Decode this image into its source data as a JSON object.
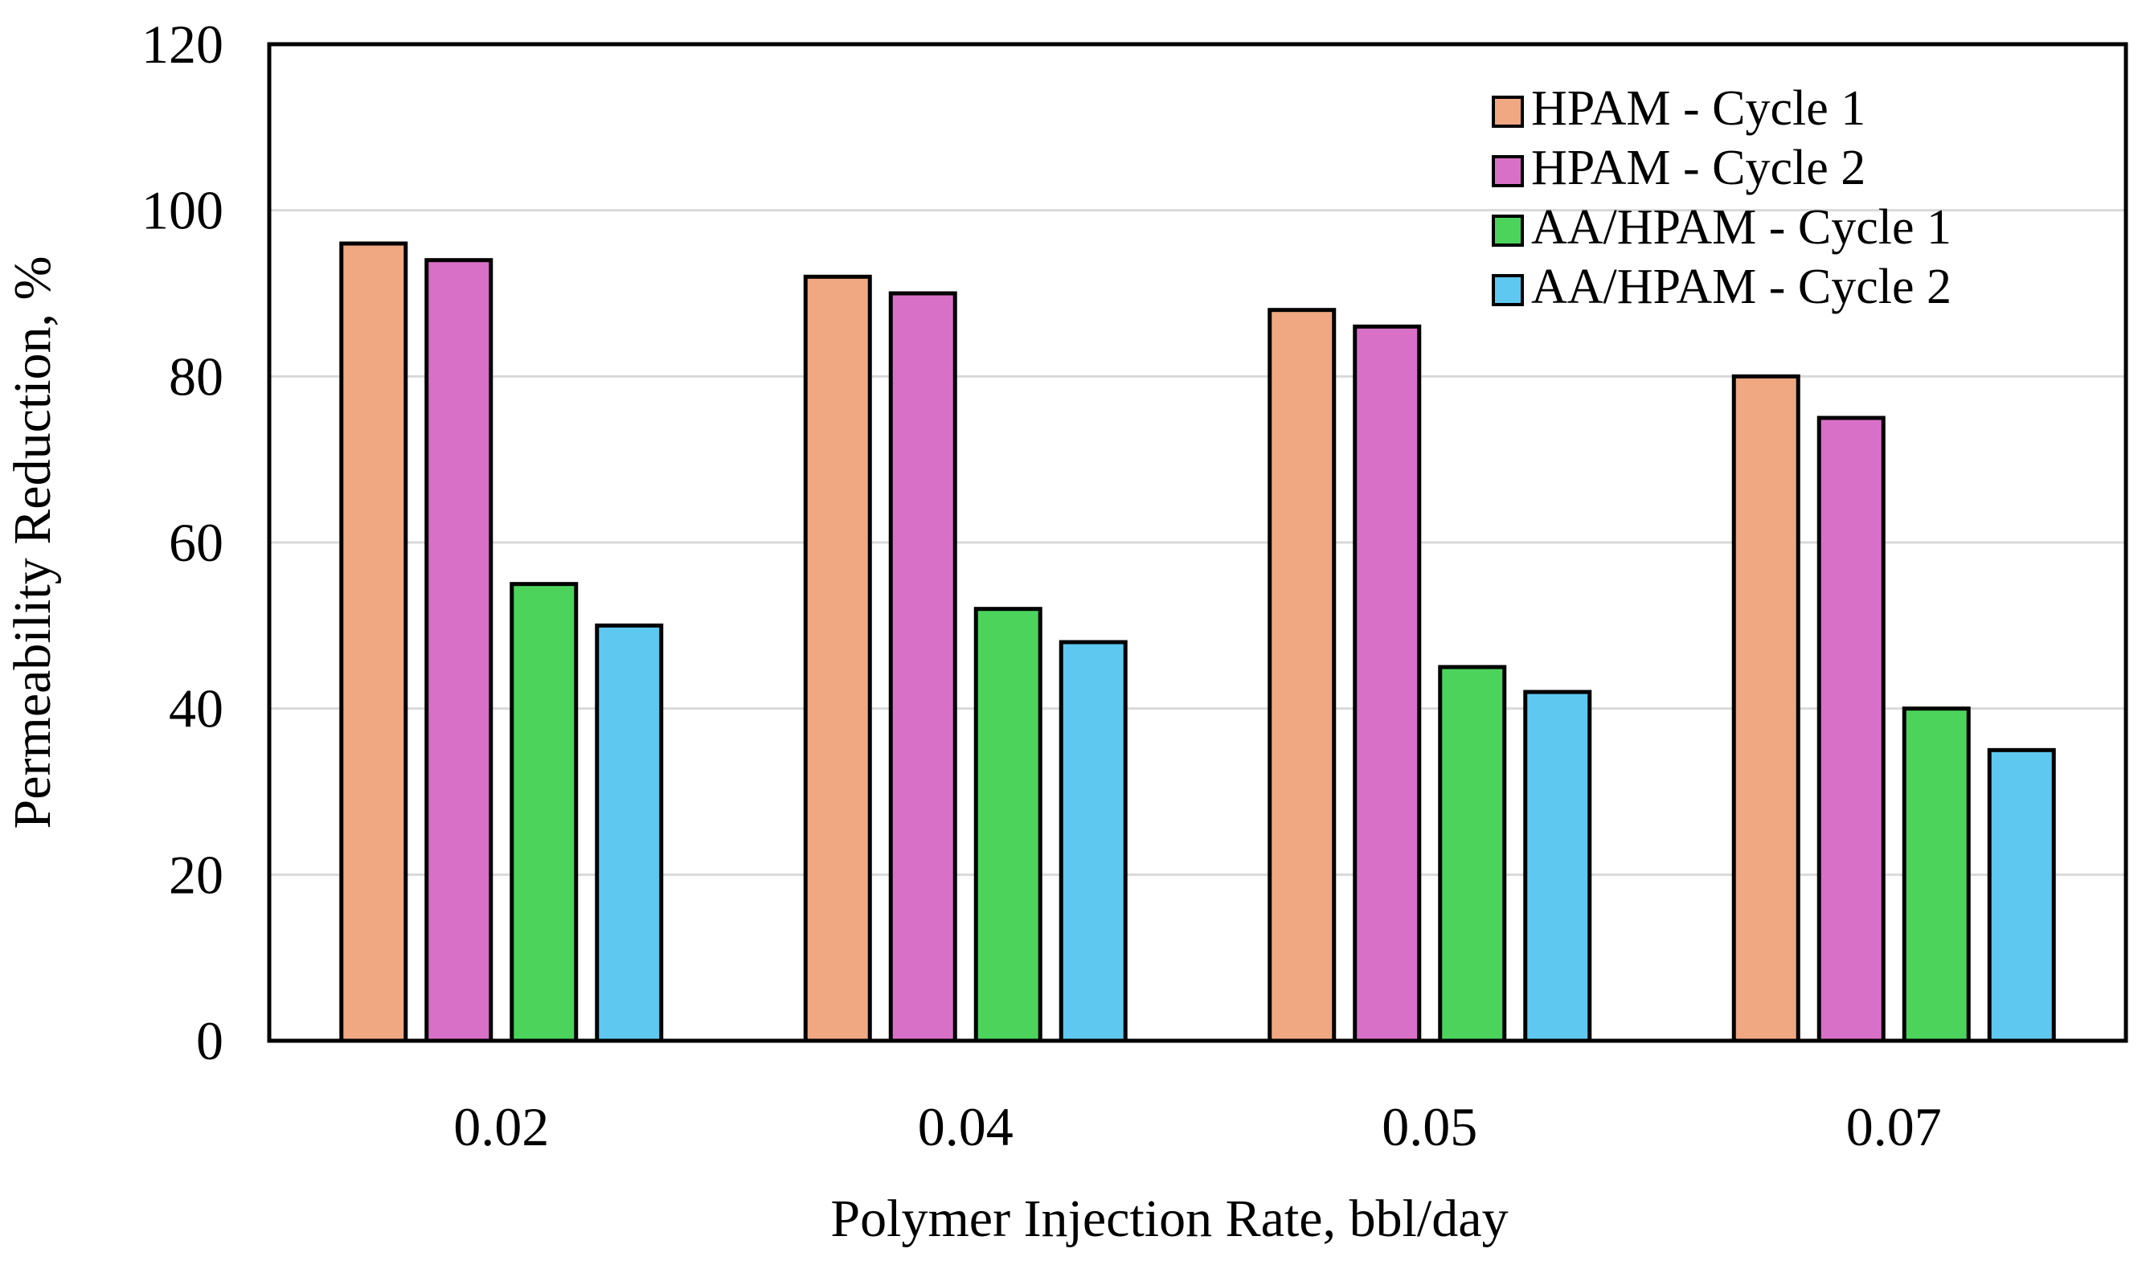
{
  "chart_data": {
    "type": "bar",
    "title": "",
    "xlabel": "Polymer Injection Rate, bbl/day",
    "ylabel": "Permeability Reduction, %",
    "categories": [
      "0.02",
      "0.04",
      "0.05",
      "0.07"
    ],
    "ylim": [
      0,
      120
    ],
    "yticks": [
      0,
      20,
      40,
      60,
      80,
      100,
      120
    ],
    "ytick_labels": [
      "0",
      "20",
      "40",
      "60",
      "80",
      "100",
      "120"
    ],
    "grid": true,
    "legend_position": "top-right",
    "series": [
      {
        "name": "HPAM - Cycle 1",
        "color": "#F0A882",
        "values": [
          96,
          92,
          88,
          80
        ]
      },
      {
        "name": "HPAM - Cycle 2",
        "color": "#D970C8",
        "values": [
          94,
          90,
          86,
          75
        ]
      },
      {
        "name": "AA/HPAM - Cycle 1",
        "color": "#4CD35C",
        "values": [
          55,
          52,
          45,
          40
        ]
      },
      {
        "name": "AA/HPAM - Cycle 2",
        "color": "#5EC8F0",
        "values": [
          50,
          48,
          42,
          35
        ]
      }
    ]
  }
}
